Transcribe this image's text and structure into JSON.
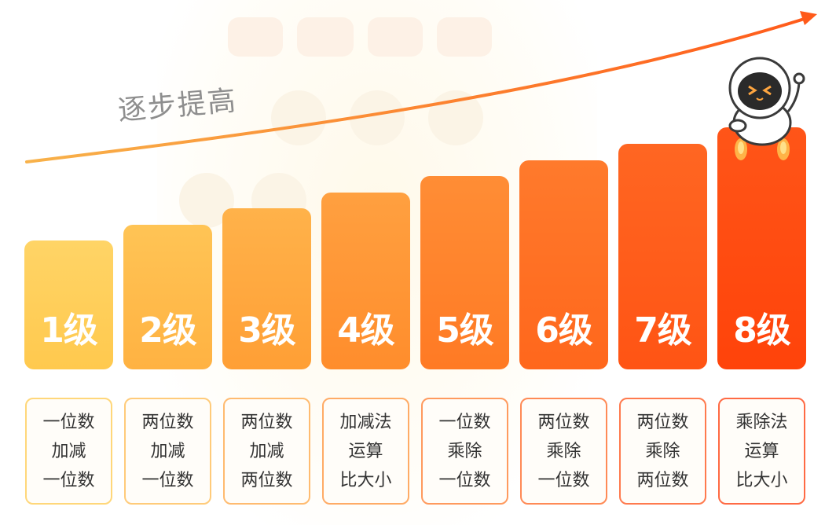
{
  "trend": {
    "label": "逐步提高",
    "color": "#f59a3a",
    "arrow_color": "#ff5a1a"
  },
  "levels": [
    {
      "label": "1级",
      "color_top": "#ffd466",
      "color_bottom": "#ffc94e",
      "border": "#ffd77a",
      "lines": [
        "一位数",
        "加减",
        "一位数"
      ]
    },
    {
      "label": "2级",
      "color_top": "#ffc455",
      "color_bottom": "#ffb242",
      "border": "#ffcb7a",
      "lines": [
        "两位数",
        "加减",
        "一位数"
      ]
    },
    {
      "label": "3级",
      "color_top": "#ffb24a",
      "color_bottom": "#ff9f35",
      "border": "#ffbb70",
      "lines": [
        "两位数",
        "加减",
        "两位数"
      ]
    },
    {
      "label": "4级",
      "color_top": "#ffa040",
      "color_bottom": "#ff8d2c",
      "border": "#ffab66",
      "lines": [
        "加减法",
        "运算",
        "比大小"
      ]
    },
    {
      "label": "5级",
      "color_top": "#ff8d35",
      "color_bottom": "#ff7a24",
      "border": "#ff9a5e",
      "lines": [
        "一位数",
        "乘除",
        "一位数"
      ]
    },
    {
      "label": "6级",
      "color_top": "#ff7a2c",
      "color_bottom": "#ff671c",
      "border": "#ff8a56",
      "lines": [
        "两位数",
        "乘除",
        "一位数"
      ]
    },
    {
      "label": "7级",
      "color_top": "#ff6622",
      "color_bottom": "#ff5414",
      "border": "#ff7a4e",
      "lines": [
        "两位数",
        "乘除",
        "两位数"
      ]
    },
    {
      "label": "8级",
      "color_top": "#ff5518",
      "color_bottom": "#ff430a",
      "border": "#ff6a44",
      "lines": [
        "乘除法",
        "运算",
        "比大小"
      ]
    }
  ],
  "mascot": {
    "icon": "robot-mascot-icon"
  }
}
